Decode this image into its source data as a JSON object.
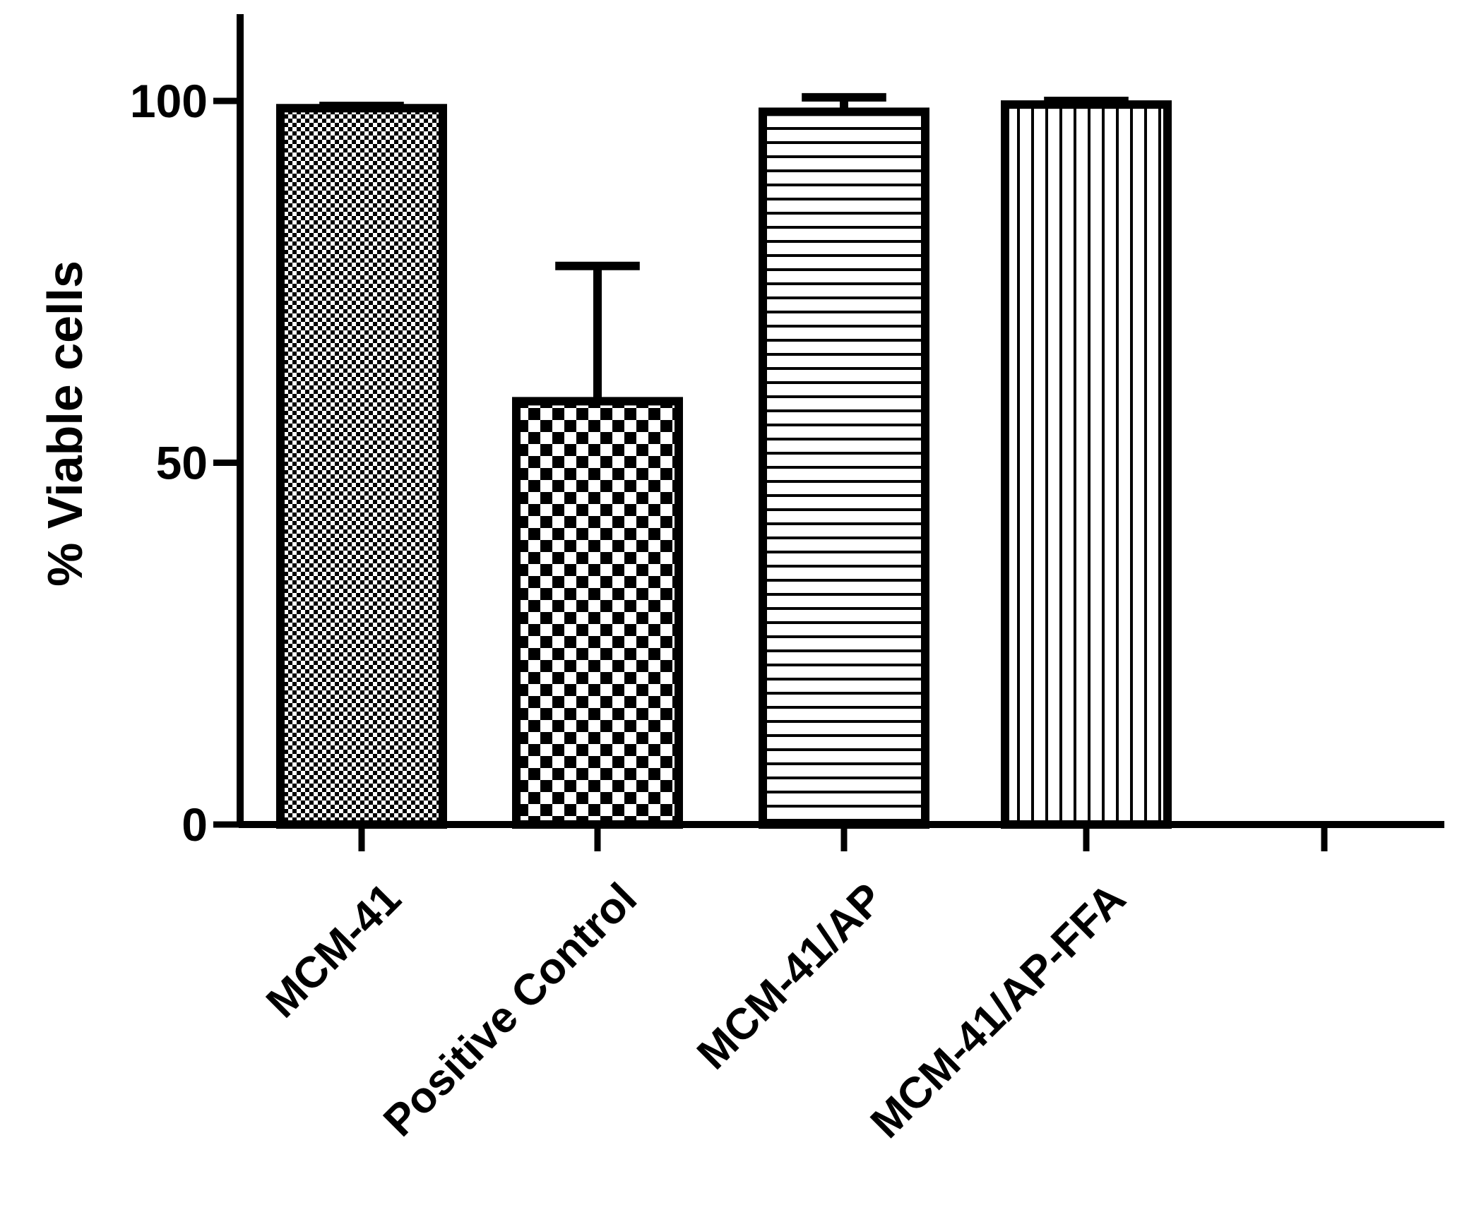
{
  "chart_data": {
    "type": "bar",
    "title": "",
    "xlabel": "",
    "ylabel": "% Viable cells",
    "ylim": [
      0,
      112
    ],
    "yticks": [
      0,
      50,
      100
    ],
    "grid": false,
    "categories": [
      "MCM-41",
      "Positive Control",
      "MCM-41/AP",
      "MCM-41/AP-FFA",
      ""
    ],
    "values": [
      99,
      58.5,
      98.5,
      99.5,
      null
    ],
    "errors": [
      0.3,
      18.7,
      2,
      0.5,
      null
    ],
    "patterns": [
      "fine-checker",
      "large-checker",
      "horizontal-lines",
      "vertical-lines",
      "none"
    ],
    "colors": {
      "stroke": "#000000",
      "background": "#ffffff"
    }
  }
}
